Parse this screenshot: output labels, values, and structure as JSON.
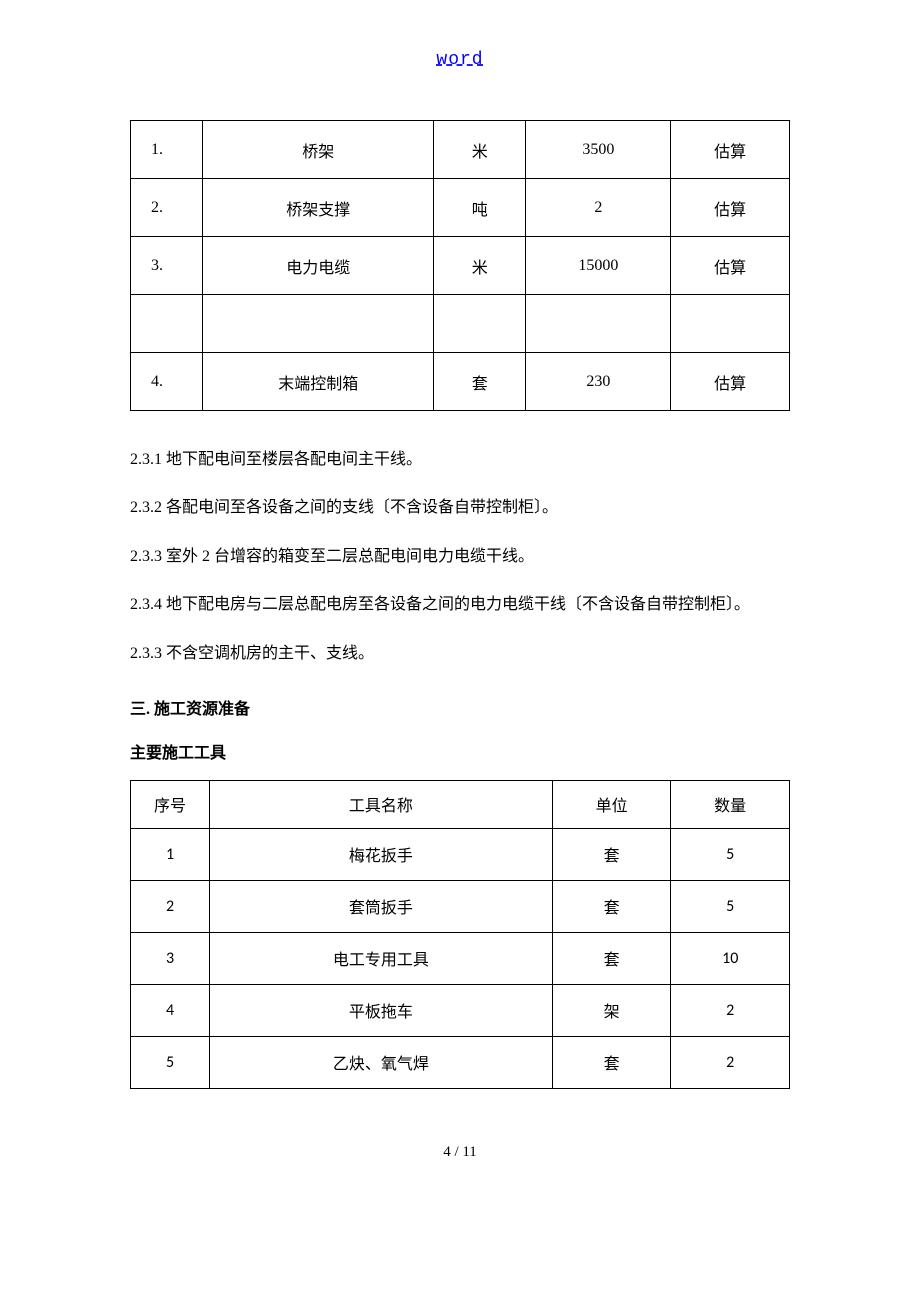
{
  "header": {
    "link_text": "word"
  },
  "materials_table": {
    "rows": [
      {
        "no": "1.",
        "name": "桥架",
        "unit": "米",
        "qty": "3500",
        "note": "估算"
      },
      {
        "no": "2.",
        "name": "桥架支撑",
        "unit": "吨",
        "qty": "2",
        "note": "估算"
      },
      {
        "no": "3.",
        "name": "电力电缆",
        "unit": "米",
        "qty": "15000",
        "note": "估算"
      },
      {
        "no": "",
        "name": "",
        "unit": "",
        "qty": "",
        "note": ""
      },
      {
        "no": "4.",
        "name": "末端控制箱",
        "unit": "套",
        "qty": "230",
        "note": "估算"
      }
    ]
  },
  "paragraphs": {
    "p1": "2.3.1 地下配电间至楼层各配电间主干线。",
    "p2": "2.3.2 各配电间至各设备之间的支线〔不含设备自带控制柜〕。",
    "p3": "2.3.3 室外 2 台增容的箱变至二层总配电间电力电缆干线。",
    "p4": "2.3.4 地下配电房与二层总配电房至各设备之间的电力电缆干线〔不含设备自带控制柜〕。",
    "p5": "2.3.3 不含空调机房的主干、支线。"
  },
  "section3": {
    "title": "三. 施工资源准备",
    "subtitle": "主要施工工具"
  },
  "tools_table": {
    "header": {
      "no": "序号",
      "name": "工具名称",
      "unit": "单位",
      "qty": "数量"
    },
    "rows": [
      {
        "no": "1",
        "name": "梅花扳手",
        "unit": "套",
        "qty": "5"
      },
      {
        "no": "2",
        "name": "套筒扳手",
        "unit": "套",
        "qty": "5"
      },
      {
        "no": "3",
        "name": "电工专用工具",
        "unit": "套",
        "qty": "10"
      },
      {
        "no": "4",
        "name": "平板拖车",
        "unit": "架",
        "qty": "2"
      },
      {
        "no": "5",
        "name": "乙炔、氧气焊",
        "unit": "套",
        "qty": "2"
      }
    ]
  },
  "footer": {
    "page": "4 / 11"
  }
}
